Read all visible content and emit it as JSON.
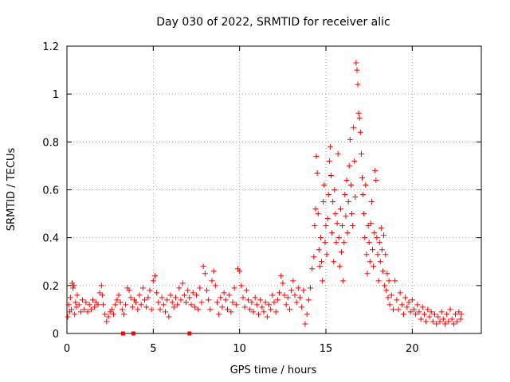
{
  "chart_data": {
    "type": "scatter",
    "title": "Day 030 of 2022, SRMTID for receiver alic",
    "xlabel": "GPS time / hours",
    "ylabel": "SRMTID / TECUs",
    "xlim": [
      0,
      24
    ],
    "ylim": [
      0,
      1.2
    ],
    "xticks": [
      0,
      5,
      10,
      15,
      20
    ],
    "xtick_labels": [
      "0",
      "5",
      "10",
      "15",
      "20"
    ],
    "yticks": [
      0,
      0.2,
      0.4,
      0.6,
      0.8,
      1.0,
      1.2
    ],
    "ytick_labels": [
      "0",
      "0.2",
      "0.4",
      "0.6",
      "0.8",
      "1",
      "1.2"
    ],
    "grid": true,
    "marker": "+",
    "color": "#ff0000",
    "gap_markers": [
      3.25,
      3.85,
      7.1
    ],
    "series": [
      {
        "name": "SRMTID",
        "points": [
          [
            0.05,
            0.07
          ],
          [
            0.1,
            0.12
          ],
          [
            0.15,
            0.09
          ],
          [
            0.2,
            0.15
          ],
          [
            0.25,
            0.1
          ],
          [
            0.3,
            0.21
          ],
          [
            0.35,
            0.19
          ],
          [
            0.4,
            0.2
          ],
          [
            0.45,
            0.08
          ],
          [
            0.5,
            0.13
          ],
          [
            0.55,
            0.11
          ],
          [
            0.6,
            0.16
          ],
          [
            0.7,
            0.12
          ],
          [
            0.8,
            0.09
          ],
          [
            0.9,
            0.14
          ],
          [
            1.0,
            0.1
          ],
          [
            1.1,
            0.13
          ],
          [
            1.2,
            0.09
          ],
          [
            1.3,
            0.12
          ],
          [
            1.4,
            0.1
          ],
          [
            1.5,
            0.14
          ],
          [
            1.6,
            0.11
          ],
          [
            1.7,
            0.13
          ],
          [
            1.8,
            0.12
          ],
          [
            1.9,
            0.17
          ],
          [
            2.0,
            0.2
          ],
          [
            2.05,
            0.16
          ],
          [
            2.1,
            0.12
          ],
          [
            2.2,
            0.08
          ],
          [
            2.3,
            0.05
          ],
          [
            2.4,
            0.07
          ],
          [
            2.5,
            0.09
          ],
          [
            2.6,
            0.1
          ],
          [
            2.7,
            0.08
          ],
          [
            2.8,
            0.12
          ],
          [
            2.9,
            0.14
          ],
          [
            3.0,
            0.16
          ],
          [
            3.1,
            0.13
          ],
          [
            3.2,
            0.1
          ],
          [
            3.3,
            0.08
          ],
          [
            3.4,
            0.12
          ],
          [
            3.5,
            0.19
          ],
          [
            3.6,
            0.18
          ],
          [
            3.7,
            0.15
          ],
          [
            3.8,
            0.11
          ],
          [
            3.9,
            0.14
          ],
          [
            4.0,
            0.13
          ],
          [
            4.1,
            0.1
          ],
          [
            4.2,
            0.16
          ],
          [
            4.3,
            0.12
          ],
          [
            4.4,
            0.19
          ],
          [
            4.5,
            0.14
          ],
          [
            4.6,
            0.11
          ],
          [
            4.7,
            0.15
          ],
          [
            4.8,
            0.18
          ],
          [
            4.9,
            0.1
          ],
          [
            5.0,
            0.22
          ],
          [
            5.1,
            0.24
          ],
          [
            5.2,
            0.17
          ],
          [
            5.3,
            0.13
          ],
          [
            5.4,
            0.1
          ],
          [
            5.5,
            0.15
          ],
          [
            5.6,
            0.12
          ],
          [
            5.7,
            0.09
          ],
          [
            5.8,
            0.14
          ],
          [
            5.9,
            0.07
          ],
          [
            6.0,
            0.16
          ],
          [
            6.1,
            0.13
          ],
          [
            6.2,
            0.11
          ],
          [
            6.3,
            0.15
          ],
          [
            6.4,
            0.12
          ],
          [
            6.5,
            0.19
          ],
          [
            6.6,
            0.14
          ],
          [
            6.7,
            0.21
          ],
          [
            6.8,
            0.16
          ],
          [
            6.9,
            0.13
          ],
          [
            7.0,
            0.18
          ],
          [
            7.1,
            0.15
          ],
          [
            7.2,
            0.12
          ],
          [
            7.3,
            0.17
          ],
          [
            7.4,
            0.11
          ],
          [
            7.5,
            0.16
          ],
          [
            7.6,
            0.1
          ],
          [
            7.7,
            0.19
          ],
          [
            7.8,
            0.13
          ],
          [
            7.9,
            0.28
          ],
          [
            8.0,
            0.25
          ],
          [
            8.1,
            0.18
          ],
          [
            8.2,
            0.14
          ],
          [
            8.3,
            0.1
          ],
          [
            8.4,
            0.22
          ],
          [
            8.5,
            0.26
          ],
          [
            8.6,
            0.2
          ],
          [
            8.7,
            0.13
          ],
          [
            8.8,
            0.08
          ],
          [
            8.9,
            0.15
          ],
          [
            9.0,
            0.11
          ],
          [
            9.1,
            0.17
          ],
          [
            9.2,
            0.14
          ],
          [
            9.3,
            0.1
          ],
          [
            9.4,
            0.16
          ],
          [
            9.5,
            0.09
          ],
          [
            9.6,
            0.13
          ],
          [
            9.7,
            0.19
          ],
          [
            9.8,
            0.12
          ],
          [
            9.9,
            0.27
          ],
          [
            10.0,
            0.26
          ],
          [
            10.1,
            0.2
          ],
          [
            10.2,
            0.15
          ],
          [
            10.3,
            0.11
          ],
          [
            10.4,
            0.18
          ],
          [
            10.5,
            0.14
          ],
          [
            10.6,
            0.1
          ],
          [
            10.7,
            0.13
          ],
          [
            10.8,
            0.09
          ],
          [
            10.9,
            0.15
          ],
          [
            11.0,
            0.12
          ],
          [
            11.1,
            0.08
          ],
          [
            11.2,
            0.14
          ],
          [
            11.3,
            0.11
          ],
          [
            11.4,
            0.09
          ],
          [
            11.5,
            0.13
          ],
          [
            11.6,
            0.07
          ],
          [
            11.7,
            0.12
          ],
          [
            11.8,
            0.1
          ],
          [
            11.9,
            0.16
          ],
          [
            12.0,
            0.13
          ],
          [
            12.1,
            0.09
          ],
          [
            12.2,
            0.14
          ],
          [
            12.3,
            0.17
          ],
          [
            12.4,
            0.24
          ],
          [
            12.5,
            0.21
          ],
          [
            12.6,
            0.16
          ],
          [
            12.7,
            0.12
          ],
          [
            12.8,
            0.15
          ],
          [
            12.9,
            0.1
          ],
          [
            13.0,
            0.18
          ],
          [
            13.1,
            0.22
          ],
          [
            13.2,
            0.16
          ],
          [
            13.3,
            0.13
          ],
          [
            13.4,
            0.19
          ],
          [
            13.5,
            0.15
          ],
          [
            13.6,
            0.11
          ],
          [
            13.7,
            0.18
          ],
          [
            13.8,
            0.04
          ],
          [
            13.9,
            0.08
          ],
          [
            14.0,
            0.14
          ],
          [
            14.1,
            0.19
          ],
          [
            14.2,
            0.27
          ],
          [
            14.3,
            0.32
          ],
          [
            14.35,
            0.45
          ],
          [
            14.4,
            0.52
          ],
          [
            14.45,
            0.74
          ],
          [
            14.5,
            0.67
          ],
          [
            14.55,
            0.5
          ],
          [
            14.6,
            0.35
          ],
          [
            14.65,
            0.28
          ],
          [
            14.7,
            0.4
          ],
          [
            14.75,
            0.3
          ],
          [
            14.8,
            0.22
          ],
          [
            14.85,
            0.55
          ],
          [
            14.9,
            0.62
          ],
          [
            14.95,
            0.38
          ],
          [
            15.0,
            0.45
          ],
          [
            15.05,
            0.33
          ],
          [
            15.1,
            0.48
          ],
          [
            15.15,
            0.58
          ],
          [
            15.2,
            0.72
          ],
          [
            15.25,
            0.78
          ],
          [
            15.3,
            0.66
          ],
          [
            15.35,
            0.42
          ],
          [
            15.4,
            0.55
          ],
          [
            15.45,
            0.3
          ],
          [
            15.5,
            0.6
          ],
          [
            15.55,
            0.5
          ],
          [
            15.6,
            0.38
          ],
          [
            15.65,
            0.46
          ],
          [
            15.7,
            0.75
          ],
          [
            15.75,
            0.4
          ],
          [
            15.8,
            0.28
          ],
          [
            15.85,
            0.52
          ],
          [
            15.9,
            0.34
          ],
          [
            15.95,
            0.45
          ],
          [
            16.0,
            0.22
          ],
          [
            16.05,
            0.38
          ],
          [
            16.1,
            0.58
          ],
          [
            16.15,
            0.49
          ],
          [
            16.2,
            0.64
          ],
          [
            16.25,
            0.42
          ],
          [
            16.3,
            0.55
          ],
          [
            16.35,
            0.7
          ],
          [
            16.4,
            0.81
          ],
          [
            16.45,
            0.62
          ],
          [
            16.5,
            0.5
          ],
          [
            16.55,
            0.45
          ],
          [
            16.6,
            0.86
          ],
          [
            16.65,
            0.72
          ],
          [
            16.7,
            0.57
          ],
          [
            16.75,
            1.13
          ],
          [
            16.8,
            1.1
          ],
          [
            16.85,
            1.04
          ],
          [
            16.9,
            0.92
          ],
          [
            16.95,
            0.9
          ],
          [
            17.0,
            0.84
          ],
          [
            17.05,
            0.75
          ],
          [
            17.1,
            0.65
          ],
          [
            17.15,
            0.58
          ],
          [
            17.2,
            0.5
          ],
          [
            17.25,
            0.4
          ],
          [
            17.3,
            0.62
          ],
          [
            17.35,
            0.33
          ],
          [
            17.4,
            0.25
          ],
          [
            17.45,
            0.45
          ],
          [
            17.5,
            0.38
          ],
          [
            17.55,
            0.3
          ],
          [
            17.6,
            0.46
          ],
          [
            17.65,
            0.55
          ],
          [
            17.7,
            0.35
          ],
          [
            17.75,
            0.28
          ],
          [
            17.8,
            0.42
          ],
          [
            17.85,
            0.68
          ],
          [
            17.9,
            0.64
          ],
          [
            17.95,
            0.4
          ],
          [
            18.0,
            0.33
          ],
          [
            18.05,
            0.22
          ],
          [
            18.1,
            0.38
          ],
          [
            18.15,
            0.3
          ],
          [
            18.2,
            0.44
          ],
          [
            18.25,
            0.35
          ],
          [
            18.3,
            0.26
          ],
          [
            18.35,
            0.41
          ],
          [
            18.4,
            0.2
          ],
          [
            18.45,
            0.33
          ],
          [
            18.5,
            0.18
          ],
          [
            18.55,
            0.25
          ],
          [
            18.6,
            0.15
          ],
          [
            18.65,
            0.22
          ],
          [
            18.7,
            0.12
          ],
          [
            18.8,
            0.16
          ],
          [
            18.9,
            0.1
          ],
          [
            19.0,
            0.22
          ],
          [
            19.1,
            0.14
          ],
          [
            19.2,
            0.1
          ],
          [
            19.3,
            0.17
          ],
          [
            19.4,
            0.12
          ],
          [
            19.5,
            0.08
          ],
          [
            19.6,
            0.15
          ],
          [
            19.7,
            0.11
          ],
          [
            19.8,
            0.13
          ],
          [
            19.9,
            0.09
          ],
          [
            20.0,
            0.14
          ],
          [
            20.1,
            0.1
          ],
          [
            20.2,
            0.08
          ],
          [
            20.3,
            0.12
          ],
          [
            20.4,
            0.09
          ],
          [
            20.5,
            0.06
          ],
          [
            20.6,
            0.11
          ],
          [
            20.7,
            0.08
          ],
          [
            20.8,
            0.05
          ],
          [
            20.9,
            0.1
          ],
          [
            21.0,
            0.07
          ],
          [
            21.1,
            0.09
          ],
          [
            21.2,
            0.05
          ],
          [
            21.3,
            0.08
          ],
          [
            21.4,
            0.04
          ],
          [
            21.5,
            0.07
          ],
          [
            21.6,
            0.05
          ],
          [
            21.7,
            0.09
          ],
          [
            21.8,
            0.06
          ],
          [
            21.9,
            0.04
          ],
          [
            22.0,
            0.08
          ],
          [
            22.1,
            0.05
          ],
          [
            22.2,
            0.1
          ],
          [
            22.3,
            0.06
          ],
          [
            22.4,
            0.04
          ],
          [
            22.5,
            0.08
          ],
          [
            22.6,
            0.05
          ],
          [
            22.7,
            0.09
          ],
          [
            22.8,
            0.06
          ],
          [
            22.85,
            0.08
          ]
        ]
      }
    ]
  }
}
